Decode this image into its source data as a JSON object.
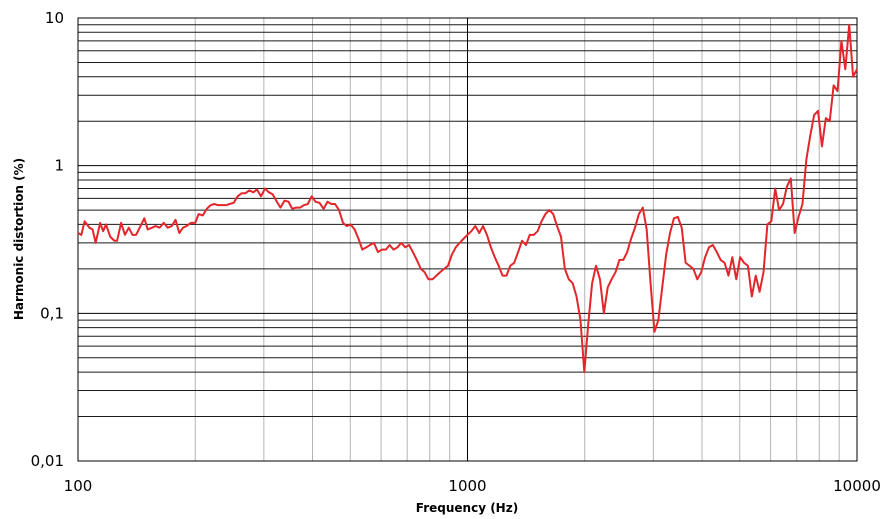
{
  "chart_data": {
    "type": "line",
    "xlabel": "Frequency (Hz)",
    "ylabel": "Harmonic distortion (%)",
    "x_scale": "log",
    "y_scale": "log",
    "xlim": [
      100,
      10000
    ],
    "ylim": [
      0.01,
      10
    ],
    "grid": true,
    "legend": "none",
    "x_ticks": [
      {
        "value": 100,
        "label": "100"
      },
      {
        "value": 1000,
        "label": "1000"
      },
      {
        "value": 10000,
        "label": "10000"
      }
    ],
    "y_ticks": [
      {
        "value": 0.01,
        "label": "0,01"
      },
      {
        "value": 0.1,
        "label": "0,1"
      },
      {
        "value": 1,
        "label": "1"
      },
      {
        "value": 10,
        "label": "10"
      }
    ],
    "series": [
      {
        "color": "#e3262b",
        "points": [
          [
            100,
            0.35
          ],
          [
            102,
            0.34
          ],
          [
            104,
            0.42
          ],
          [
            107,
            0.38
          ],
          [
            109,
            0.37
          ],
          [
            111,
            0.3
          ],
          [
            114,
            0.41
          ],
          [
            116,
            0.36
          ],
          [
            118,
            0.4
          ],
          [
            121,
            0.33
          ],
          [
            124,
            0.31
          ],
          [
            126,
            0.31
          ],
          [
            129,
            0.41
          ],
          [
            132,
            0.34
          ],
          [
            135,
            0.38
          ],
          [
            138,
            0.34
          ],
          [
            141,
            0.34
          ],
          [
            144,
            0.38
          ],
          [
            148,
            0.44
          ],
          [
            151,
            0.37
          ],
          [
            155,
            0.38
          ],
          [
            158,
            0.39
          ],
          [
            162,
            0.38
          ],
          [
            166,
            0.41
          ],
          [
            170,
            0.38
          ],
          [
            174,
            0.39
          ],
          [
            178,
            0.43
          ],
          [
            182,
            0.35
          ],
          [
            186,
            0.38
          ],
          [
            190,
            0.39
          ],
          [
            195,
            0.41
          ],
          [
            200,
            0.41
          ],
          [
            204,
            0.47
          ],
          [
            209,
            0.46
          ],
          [
            214,
            0.51
          ],
          [
            219,
            0.54
          ],
          [
            224,
            0.55
          ],
          [
            229,
            0.54
          ],
          [
            234,
            0.54
          ],
          [
            240,
            0.54
          ],
          [
            245,
            0.55
          ],
          [
            251,
            0.56
          ],
          [
            257,
            0.62
          ],
          [
            263,
            0.65
          ],
          [
            269,
            0.65
          ],
          [
            275,
            0.68
          ],
          [
            282,
            0.66
          ],
          [
            288,
            0.69
          ],
          [
            295,
            0.62
          ],
          [
            302,
            0.7
          ],
          [
            309,
            0.66
          ],
          [
            316,
            0.64
          ],
          [
            324,
            0.57
          ],
          [
            331,
            0.52
          ],
          [
            339,
            0.58
          ],
          [
            347,
            0.57
          ],
          [
            355,
            0.51
          ],
          [
            363,
            0.52
          ],
          [
            372,
            0.52
          ],
          [
            380,
            0.54
          ],
          [
            389,
            0.55
          ],
          [
            398,
            0.62
          ],
          [
            407,
            0.57
          ],
          [
            417,
            0.56
          ],
          [
            427,
            0.51
          ],
          [
            437,
            0.57
          ],
          [
            447,
            0.55
          ],
          [
            457,
            0.55
          ],
          [
            468,
            0.5
          ],
          [
            479,
            0.41
          ],
          [
            490,
            0.39
          ],
          [
            501,
            0.4
          ],
          [
            513,
            0.37
          ],
          [
            525,
            0.32
          ],
          [
            537,
            0.27
          ],
          [
            550,
            0.28
          ],
          [
            562,
            0.29
          ],
          [
            575,
            0.3
          ],
          [
            589,
            0.26
          ],
          [
            603,
            0.27
          ],
          [
            617,
            0.27
          ],
          [
            631,
            0.29
          ],
          [
            646,
            0.27
          ],
          [
            661,
            0.28
          ],
          [
            676,
            0.3
          ],
          [
            692,
            0.28
          ],
          [
            708,
            0.29
          ],
          [
            724,
            0.26
          ],
          [
            741,
            0.23
          ],
          [
            759,
            0.2
          ],
          [
            776,
            0.19
          ],
          [
            794,
            0.17
          ],
          [
            813,
            0.17
          ],
          [
            832,
            0.18
          ],
          [
            851,
            0.19
          ],
          [
            871,
            0.2
          ],
          [
            891,
            0.21
          ],
          [
            912,
            0.25
          ],
          [
            933,
            0.28
          ],
          [
            955,
            0.3
          ],
          [
            977,
            0.32
          ],
          [
            1000,
            0.34
          ],
          [
            1023,
            0.36
          ],
          [
            1047,
            0.39
          ],
          [
            1072,
            0.35
          ],
          [
            1096,
            0.39
          ],
          [
            1122,
            0.34
          ],
          [
            1148,
            0.28
          ],
          [
            1175,
            0.24
          ],
          [
            1202,
            0.21
          ],
          [
            1230,
            0.18
          ],
          [
            1259,
            0.18
          ],
          [
            1288,
            0.21
          ],
          [
            1318,
            0.22
          ],
          [
            1349,
            0.26
          ],
          [
            1380,
            0.31
          ],
          [
            1413,
            0.29
          ],
          [
            1445,
            0.34
          ],
          [
            1479,
            0.34
          ],
          [
            1514,
            0.36
          ],
          [
            1549,
            0.42
          ],
          [
            1585,
            0.47
          ],
          [
            1622,
            0.5
          ],
          [
            1660,
            0.47
          ],
          [
            1698,
            0.39
          ],
          [
            1738,
            0.33
          ],
          [
            1778,
            0.2
          ],
          [
            1820,
            0.17
          ],
          [
            1862,
            0.16
          ],
          [
            1905,
            0.13
          ],
          [
            1950,
            0.09
          ],
          [
            1995,
            0.04
          ],
          [
            2042,
            0.085
          ],
          [
            2089,
            0.16
          ],
          [
            2138,
            0.21
          ],
          [
            2188,
            0.17
          ],
          [
            2239,
            0.1
          ],
          [
            2291,
            0.15
          ],
          [
            2344,
            0.17
          ],
          [
            2399,
            0.19
          ],
          [
            2455,
            0.23
          ],
          [
            2512,
            0.23
          ],
          [
            2570,
            0.26
          ],
          [
            2630,
            0.32
          ],
          [
            2692,
            0.38
          ],
          [
            2754,
            0.47
          ],
          [
            2818,
            0.52
          ],
          [
            2884,
            0.37
          ],
          [
            2951,
            0.16
          ],
          [
            3020,
            0.075
          ],
          [
            3090,
            0.09
          ],
          [
            3162,
            0.15
          ],
          [
            3236,
            0.25
          ],
          [
            3311,
            0.35
          ],
          [
            3388,
            0.44
          ],
          [
            3467,
            0.45
          ],
          [
            3548,
            0.38
          ],
          [
            3631,
            0.22
          ],
          [
            3715,
            0.21
          ],
          [
            3802,
            0.2
          ],
          [
            3890,
            0.17
          ],
          [
            3981,
            0.19
          ],
          [
            4074,
            0.24
          ],
          [
            4169,
            0.28
          ],
          [
            4266,
            0.29
          ],
          [
            4365,
            0.26
          ],
          [
            4467,
            0.23
          ],
          [
            4571,
            0.22
          ],
          [
            4677,
            0.18
          ],
          [
            4786,
            0.24
          ],
          [
            4898,
            0.17
          ],
          [
            5012,
            0.24
          ],
          [
            5129,
            0.22
          ],
          [
            5248,
            0.21
          ],
          [
            5370,
            0.13
          ],
          [
            5495,
            0.18
          ],
          [
            5623,
            0.14
          ],
          [
            5754,
            0.19
          ],
          [
            5888,
            0.4
          ],
          [
            6026,
            0.42
          ],
          [
            6166,
            0.7
          ],
          [
            6310,
            0.5
          ],
          [
            6457,
            0.55
          ],
          [
            6607,
            0.72
          ],
          [
            6761,
            0.82
          ],
          [
            6918,
            0.35
          ],
          [
            7079,
            0.45
          ],
          [
            7244,
            0.55
          ],
          [
            7413,
            1.1
          ],
          [
            7586,
            1.6
          ],
          [
            7762,
            2.2
          ],
          [
            7943,
            2.35
          ],
          [
            8128,
            1.35
          ],
          [
            8318,
            2.1
          ],
          [
            8511,
            2.0
          ],
          [
            8710,
            3.5
          ],
          [
            8913,
            3.2
          ],
          [
            9120,
            7.0
          ],
          [
            9333,
            4.5
          ],
          [
            9550,
            9.0
          ],
          [
            9772,
            4.0
          ],
          [
            10000,
            4.5
          ]
        ]
      }
    ]
  }
}
